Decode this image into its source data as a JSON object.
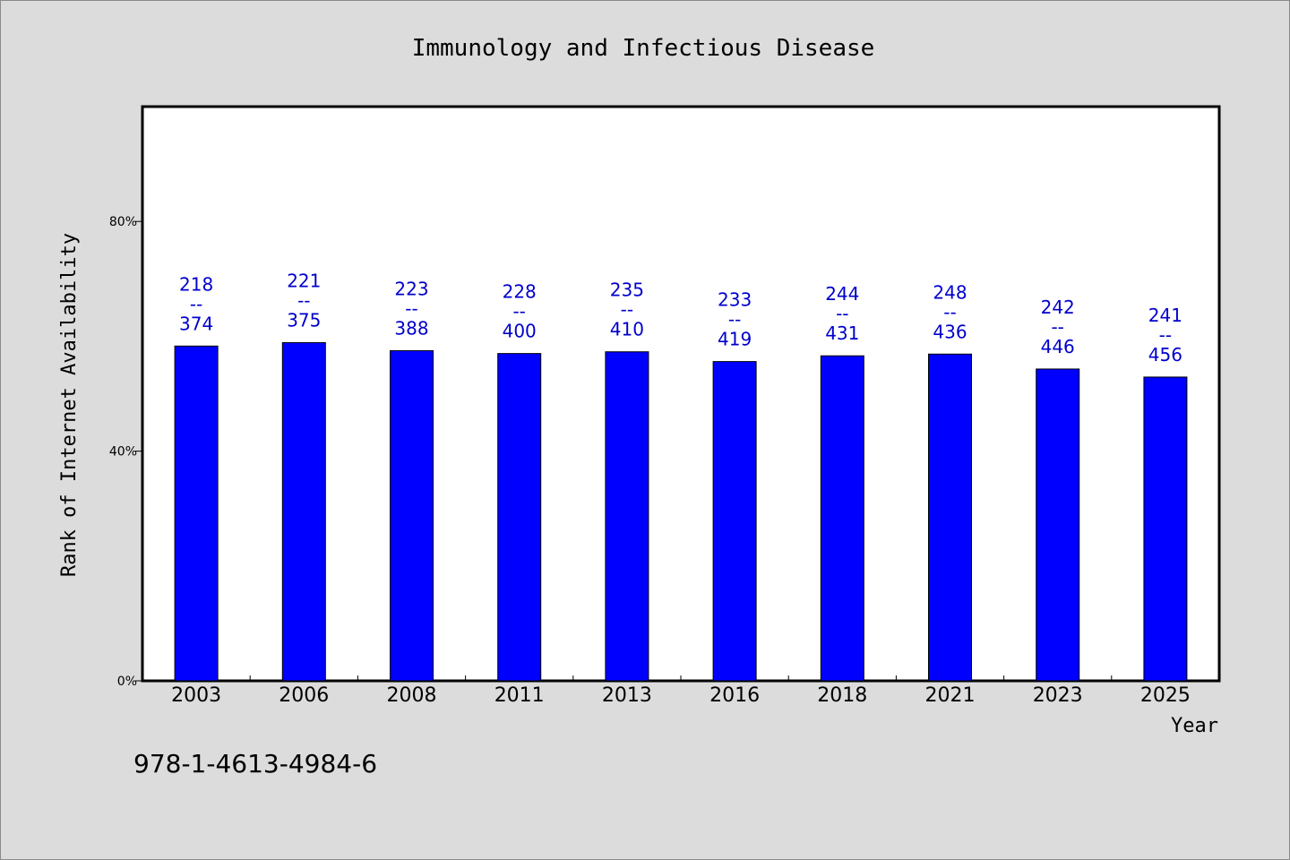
{
  "chart_data": {
    "type": "bar",
    "title": "Immunology and Infectious Disease",
    "xlabel": "Year",
    "ylabel": "Rank of Internet Availability",
    "categories": [
      "2003",
      "2006",
      "2008",
      "2011",
      "2013",
      "2016",
      "2018",
      "2021",
      "2023",
      "2025"
    ],
    "series": [
      {
        "values": [
          58.3,
          58.9,
          57.5,
          57.0,
          57.3,
          55.6,
          56.6,
          56.9,
          54.3,
          52.9
        ]
      }
    ],
    "data_labels": [
      [
        "218",
        "--",
        "374"
      ],
      [
        "221",
        "--",
        "375"
      ],
      [
        "223",
        "--",
        "388"
      ],
      [
        "228",
        "--",
        "400"
      ],
      [
        "235",
        "--",
        "410"
      ],
      [
        "233",
        "--",
        "419"
      ],
      [
        "244",
        "--",
        "431"
      ],
      [
        "248",
        "--",
        "436"
      ],
      [
        "242",
        "--",
        "446"
      ],
      [
        "241",
        "--",
        "456"
      ]
    ],
    "ylim": [
      0,
      100
    ],
    "yticks": [
      0,
      40,
      80
    ],
    "ytick_labels": [
      "0%",
      "40%",
      "80%"
    ],
    "grid": false,
    "bar_color": "#0000ff",
    "label_color": "#0000cc"
  },
  "footnote": "978-1-4613-4984-6"
}
